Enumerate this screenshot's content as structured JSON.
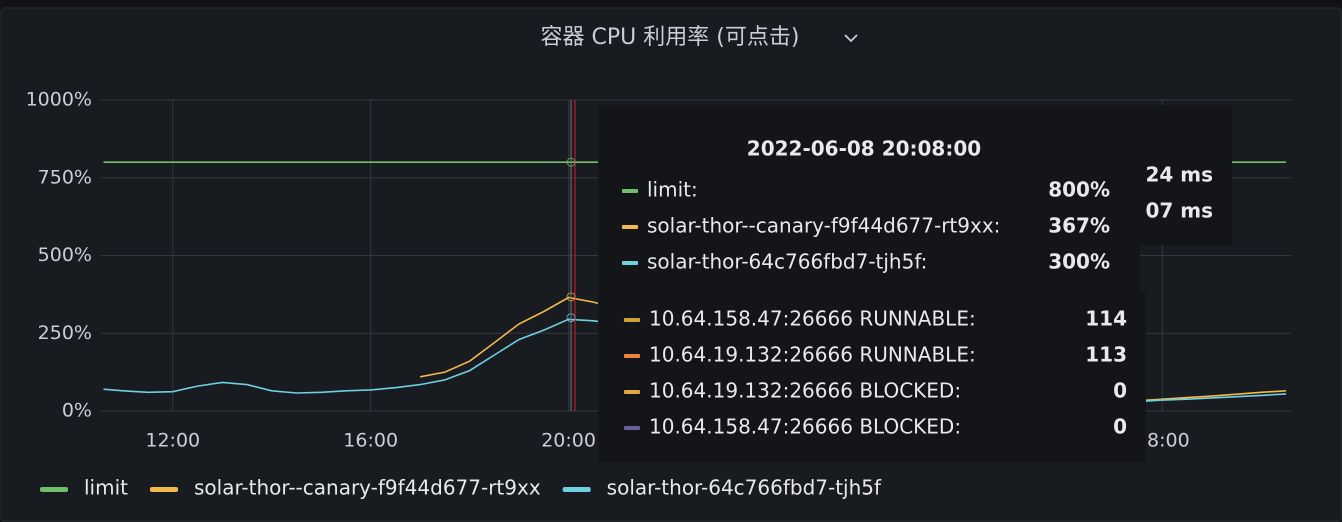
{
  "chart_data": {
    "type": "line",
    "title": "容器 CPU 利用率 (可点击)",
    "x": [
      10.6,
      11,
      11.5,
      12,
      12.5,
      13,
      13.5,
      14,
      14.5,
      15,
      15.5,
      16,
      16.5,
      17,
      17.5,
      18,
      18.5,
      19,
      19.5,
      20,
      20.5,
      21,
      21.5,
      22,
      22.5,
      23,
      23.5,
      24,
      24.5,
      25,
      25.5,
      26,
      26.5,
      27,
      27.5,
      28,
      28.5,
      29,
      29.5,
      30,
      30.5,
      31,
      31.5,
      32,
      32.5,
      33,
      33.5,
      34,
      34.5
    ],
    "series": [
      {
        "name": "limit",
        "color": "#73bf69",
        "values": [
          800,
          800,
          800,
          800,
          800,
          800,
          800,
          800,
          800,
          800,
          800,
          800,
          800,
          800,
          800,
          800,
          800,
          800,
          800,
          800,
          800,
          800,
          800,
          800,
          800,
          800,
          800,
          800,
          800,
          800,
          800,
          800,
          800,
          800,
          800,
          800,
          800,
          800,
          800,
          800,
          800,
          800,
          800,
          800,
          800,
          800,
          800,
          800,
          800
        ]
      },
      {
        "name": "solar-thor--canary-f9f44d677-rt9xx",
        "color": "#f2b84b",
        "values": [
          null,
          null,
          null,
          null,
          null,
          null,
          null,
          null,
          null,
          null,
          null,
          null,
          null,
          110,
          125,
          160,
          220,
          280,
          320,
          365,
          350,
          330,
          290,
          250,
          210,
          175,
          145,
          120,
          100,
          85,
          75,
          65,
          55,
          50,
          45,
          40,
          36,
          33,
          32,
          31,
          30,
          30,
          33,
          38,
          43,
          48,
          54,
          60,
          65
        ]
      },
      {
        "name": "solar-thor-64c766fbd7-tjh5f",
        "color": "#6ed0e0",
        "values": [
          70,
          65,
          60,
          62,
          80,
          92,
          85,
          65,
          58,
          60,
          65,
          68,
          75,
          85,
          100,
          130,
          180,
          230,
          260,
          295,
          290,
          280,
          250,
          220,
          190,
          160,
          130,
          110,
          90,
          80,
          70,
          62,
          55,
          48,
          42,
          38,
          34,
          31,
          30,
          29,
          28,
          28,
          30,
          35,
          38,
          42,
          46,
          50,
          55
        ]
      }
    ],
    "xlim": [
      10.55,
      34.6
    ],
    "xticks": [
      {
        "value": 12,
        "label": "12:00"
      },
      {
        "value": 16,
        "label": "16:00"
      },
      {
        "value": 20,
        "label": "20:00"
      },
      {
        "value": 32,
        "label": "08:00"
      }
    ],
    "ylim": [
      0,
      1000
    ],
    "yticks": [
      {
        "value": 0,
        "label": "0%"
      },
      {
        "value": 250,
        "label": "250%"
      },
      {
        "value": 500,
        "label": "500%"
      },
      {
        "value": 750,
        "label": "750%"
      },
      {
        "value": 1000,
        "label": "1000%"
      }
    ],
    "grid": true,
    "tooltip": {
      "time": "2022-06-08 20:08:00",
      "x": 20.13,
      "labels": [
        "limit:",
        "solar-thor--canary-f9f44d677-rt9xx:",
        "solar-thor-64c766fbd7-tjh5f:"
      ],
      "values": [
        800,
        367,
        300
      ],
      "value_labels": [
        "800%",
        "367%",
        "300%"
      ]
    },
    "thread_tooltip": {
      "labels": [
        "10.64.158.47:26666 RUNNABLE:",
        "10.64.19.132:26666 RUNNABLE:",
        "10.64.19.132:26666 BLOCKED:",
        "10.64.158.47:26666 BLOCKED:"
      ],
      "colors": [
        "#caa538",
        "#ef843c",
        "#e5a83a",
        "#705da0"
      ],
      "values": [
        114,
        113,
        0,
        0
      ]
    },
    "other_tooltip": {
      "texts": [
        "24 ms",
        "07 ms"
      ]
    }
  }
}
